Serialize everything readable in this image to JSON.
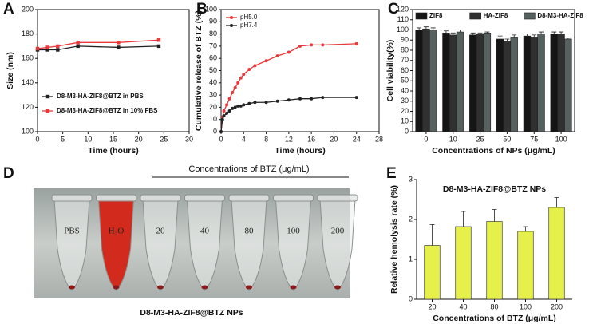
{
  "chart_data": [
    {
      "panel_label": "A",
      "type": "line",
      "marker": "square",
      "x_label": "Time (hours)",
      "y_label": "Size (nm)",
      "x": [
        0,
        2,
        4,
        8,
        16,
        24
      ],
      "series": [
        {
          "name": "D8-M3-HA-ZIF8@BTZ in PBS",
          "color": "#222222",
          "values": [
            167,
            167,
            167,
            170,
            169,
            170
          ]
        },
        {
          "name": "D8-M3-HA-ZIF8@BTZ in 10% FBS",
          "color": "#e8393b",
          "values": [
            168,
            169,
            170,
            173,
            173,
            175
          ]
        }
      ],
      "xlim": [
        0,
        30
      ],
      "xticks": [
        0,
        5,
        10,
        15,
        20,
        25,
        30
      ],
      "ylim": [
        100,
        200
      ],
      "yticks": [
        100,
        120,
        140,
        160,
        180,
        200
      ],
      "legend": "lower left"
    },
    {
      "panel_label": "B",
      "type": "line",
      "marker": "circle",
      "x_label": "Time (hours)",
      "y_label": "Cumulative release of BTZ (%)",
      "x": [
        0,
        0.25,
        0.5,
        1,
        1.5,
        2,
        2.5,
        3,
        3.5,
        4,
        5,
        6,
        8,
        10,
        12,
        14,
        16,
        18,
        24
      ],
      "series": [
        {
          "name": "pH5.0",
          "color": "#e8393b",
          "values": [
            0,
            12,
            17,
            22,
            27,
            32,
            36,
            40,
            44,
            47,
            51,
            54,
            58,
            62,
            65,
            70,
            71,
            71,
            72
          ]
        },
        {
          "name": "pH7.4",
          "color": "#222222",
          "values": [
            0,
            10,
            13,
            15,
            17,
            19,
            20,
            21,
            21,
            22,
            23,
            24,
            24,
            25,
            26,
            27,
            27,
            28,
            28
          ]
        }
      ],
      "xlim": [
        0,
        28
      ],
      "xticks": [
        0,
        4,
        8,
        12,
        16,
        20,
        24,
        28
      ],
      "ylim": [
        0,
        100
      ],
      "yticks": [
        0,
        10,
        20,
        30,
        40,
        50,
        60,
        70,
        80,
        90,
        100
      ],
      "legend": "upper left"
    },
    {
      "panel_label": "C",
      "type": "bar",
      "x_label": "Concentrations of NPs (μg/mL)",
      "y_label": "Cell viability(%)",
      "categories": [
        "0",
        "10",
        "25",
        "50",
        "75",
        "100"
      ],
      "series": [
        {
          "name": "ZIF8",
          "color": "#151515",
          "values": [
            100,
            97,
            95,
            91,
            94,
            96
          ],
          "errors": [
            2,
            2,
            2,
            3,
            2,
            2
          ]
        },
        {
          "name": "HA-ZIF8",
          "color": "#303030",
          "values": [
            101,
            95,
            96,
            89,
            93,
            96
          ],
          "errors": [
            2,
            2,
            1,
            2,
            2,
            2
          ]
        },
        {
          "name": "D8-M3-HA-ZIF8",
          "color": "#56605f",
          "values": [
            100,
            98,
            97,
            93,
            96,
            91
          ],
          "errors": [
            2,
            2,
            1,
            2,
            2,
            1
          ]
        }
      ],
      "ylim": [
        0,
        120
      ],
      "yticks": [
        0,
        10,
        20,
        30,
        40,
        50,
        60,
        70,
        80,
        90,
        100,
        110,
        120
      ],
      "legend": "top"
    },
    {
      "panel_label": "E",
      "type": "bar",
      "x_label": "Concentrations of BTZ (μg/mL)",
      "y_label": "Relative hemolysis rate (%)",
      "annotation": "D8-M3-HA-ZIF8@BTZ NPs",
      "categories": [
        "20",
        "40",
        "80",
        "100",
        "200"
      ],
      "series": [
        {
          "color": "#e6f04a",
          "values": [
            1.35,
            1.82,
            1.95,
            1.7,
            2.3
          ],
          "errors": [
            0.52,
            0.38,
            0.3,
            0.12,
            0.25
          ]
        }
      ],
      "ylim": [
        0,
        3
      ],
      "yticks": [
        0,
        1,
        2,
        3
      ]
    }
  ],
  "photo": {
    "panel_label": "D",
    "heading": "Concentrations of BTZ (μg/mL)",
    "tube_labels": [
      "PBS",
      "H₂O",
      "20",
      "40",
      "80",
      "100",
      "200"
    ],
    "caption": "D8-M3-HA-ZIF8@BTZ NPs"
  }
}
